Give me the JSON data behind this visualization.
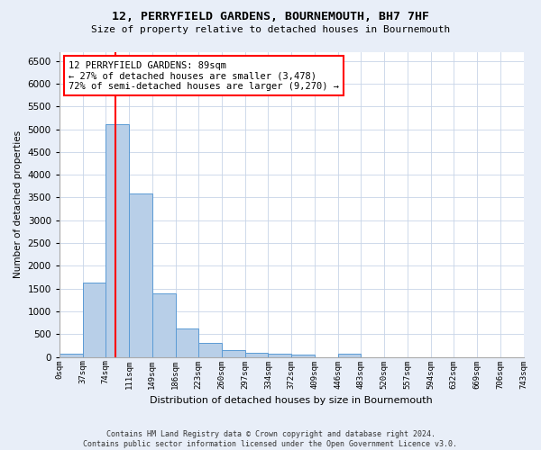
{
  "title": "12, PERRYFIELD GARDENS, BOURNEMOUTH, BH7 7HF",
  "subtitle": "Size of property relative to detached houses in Bournemouth",
  "xlabel": "Distribution of detached houses by size in Bournemouth",
  "ylabel": "Number of detached properties",
  "footer_line1": "Contains HM Land Registry data © Crown copyright and database right 2024.",
  "footer_line2": "Contains public sector information licensed under the Open Government Licence v3.0.",
  "bin_labels": [
    "0sqm",
    "37sqm",
    "74sqm",
    "111sqm",
    "149sqm",
    "186sqm",
    "223sqm",
    "260sqm",
    "297sqm",
    "334sqm",
    "372sqm",
    "409sqm",
    "446sqm",
    "483sqm",
    "520sqm",
    "557sqm",
    "594sqm",
    "632sqm",
    "669sqm",
    "706sqm",
    "743sqm"
  ],
  "bar_values": [
    70,
    1640,
    5100,
    3580,
    1400,
    620,
    310,
    155,
    95,
    65,
    55,
    0,
    70,
    0,
    0,
    0,
    0,
    0,
    0,
    0
  ],
  "bar_color": "#b8cfe8",
  "bar_edge_color": "#5b9bd5",
  "grid_color": "#c8d4e8",
  "property_line_color": "red",
  "annotation_text": "12 PERRYFIELD GARDENS: 89sqm\n← 27% of detached houses are smaller (3,478)\n72% of semi-detached houses are larger (9,270) →",
  "annotation_box_color": "red",
  "ylim": [
    0,
    6700
  ],
  "yticks": [
    0,
    500,
    1000,
    1500,
    2000,
    2500,
    3000,
    3500,
    4000,
    4500,
    5000,
    5500,
    6000,
    6500
  ],
  "background_color": "#ffffff",
  "fig_background_color": "#e8eef8"
}
